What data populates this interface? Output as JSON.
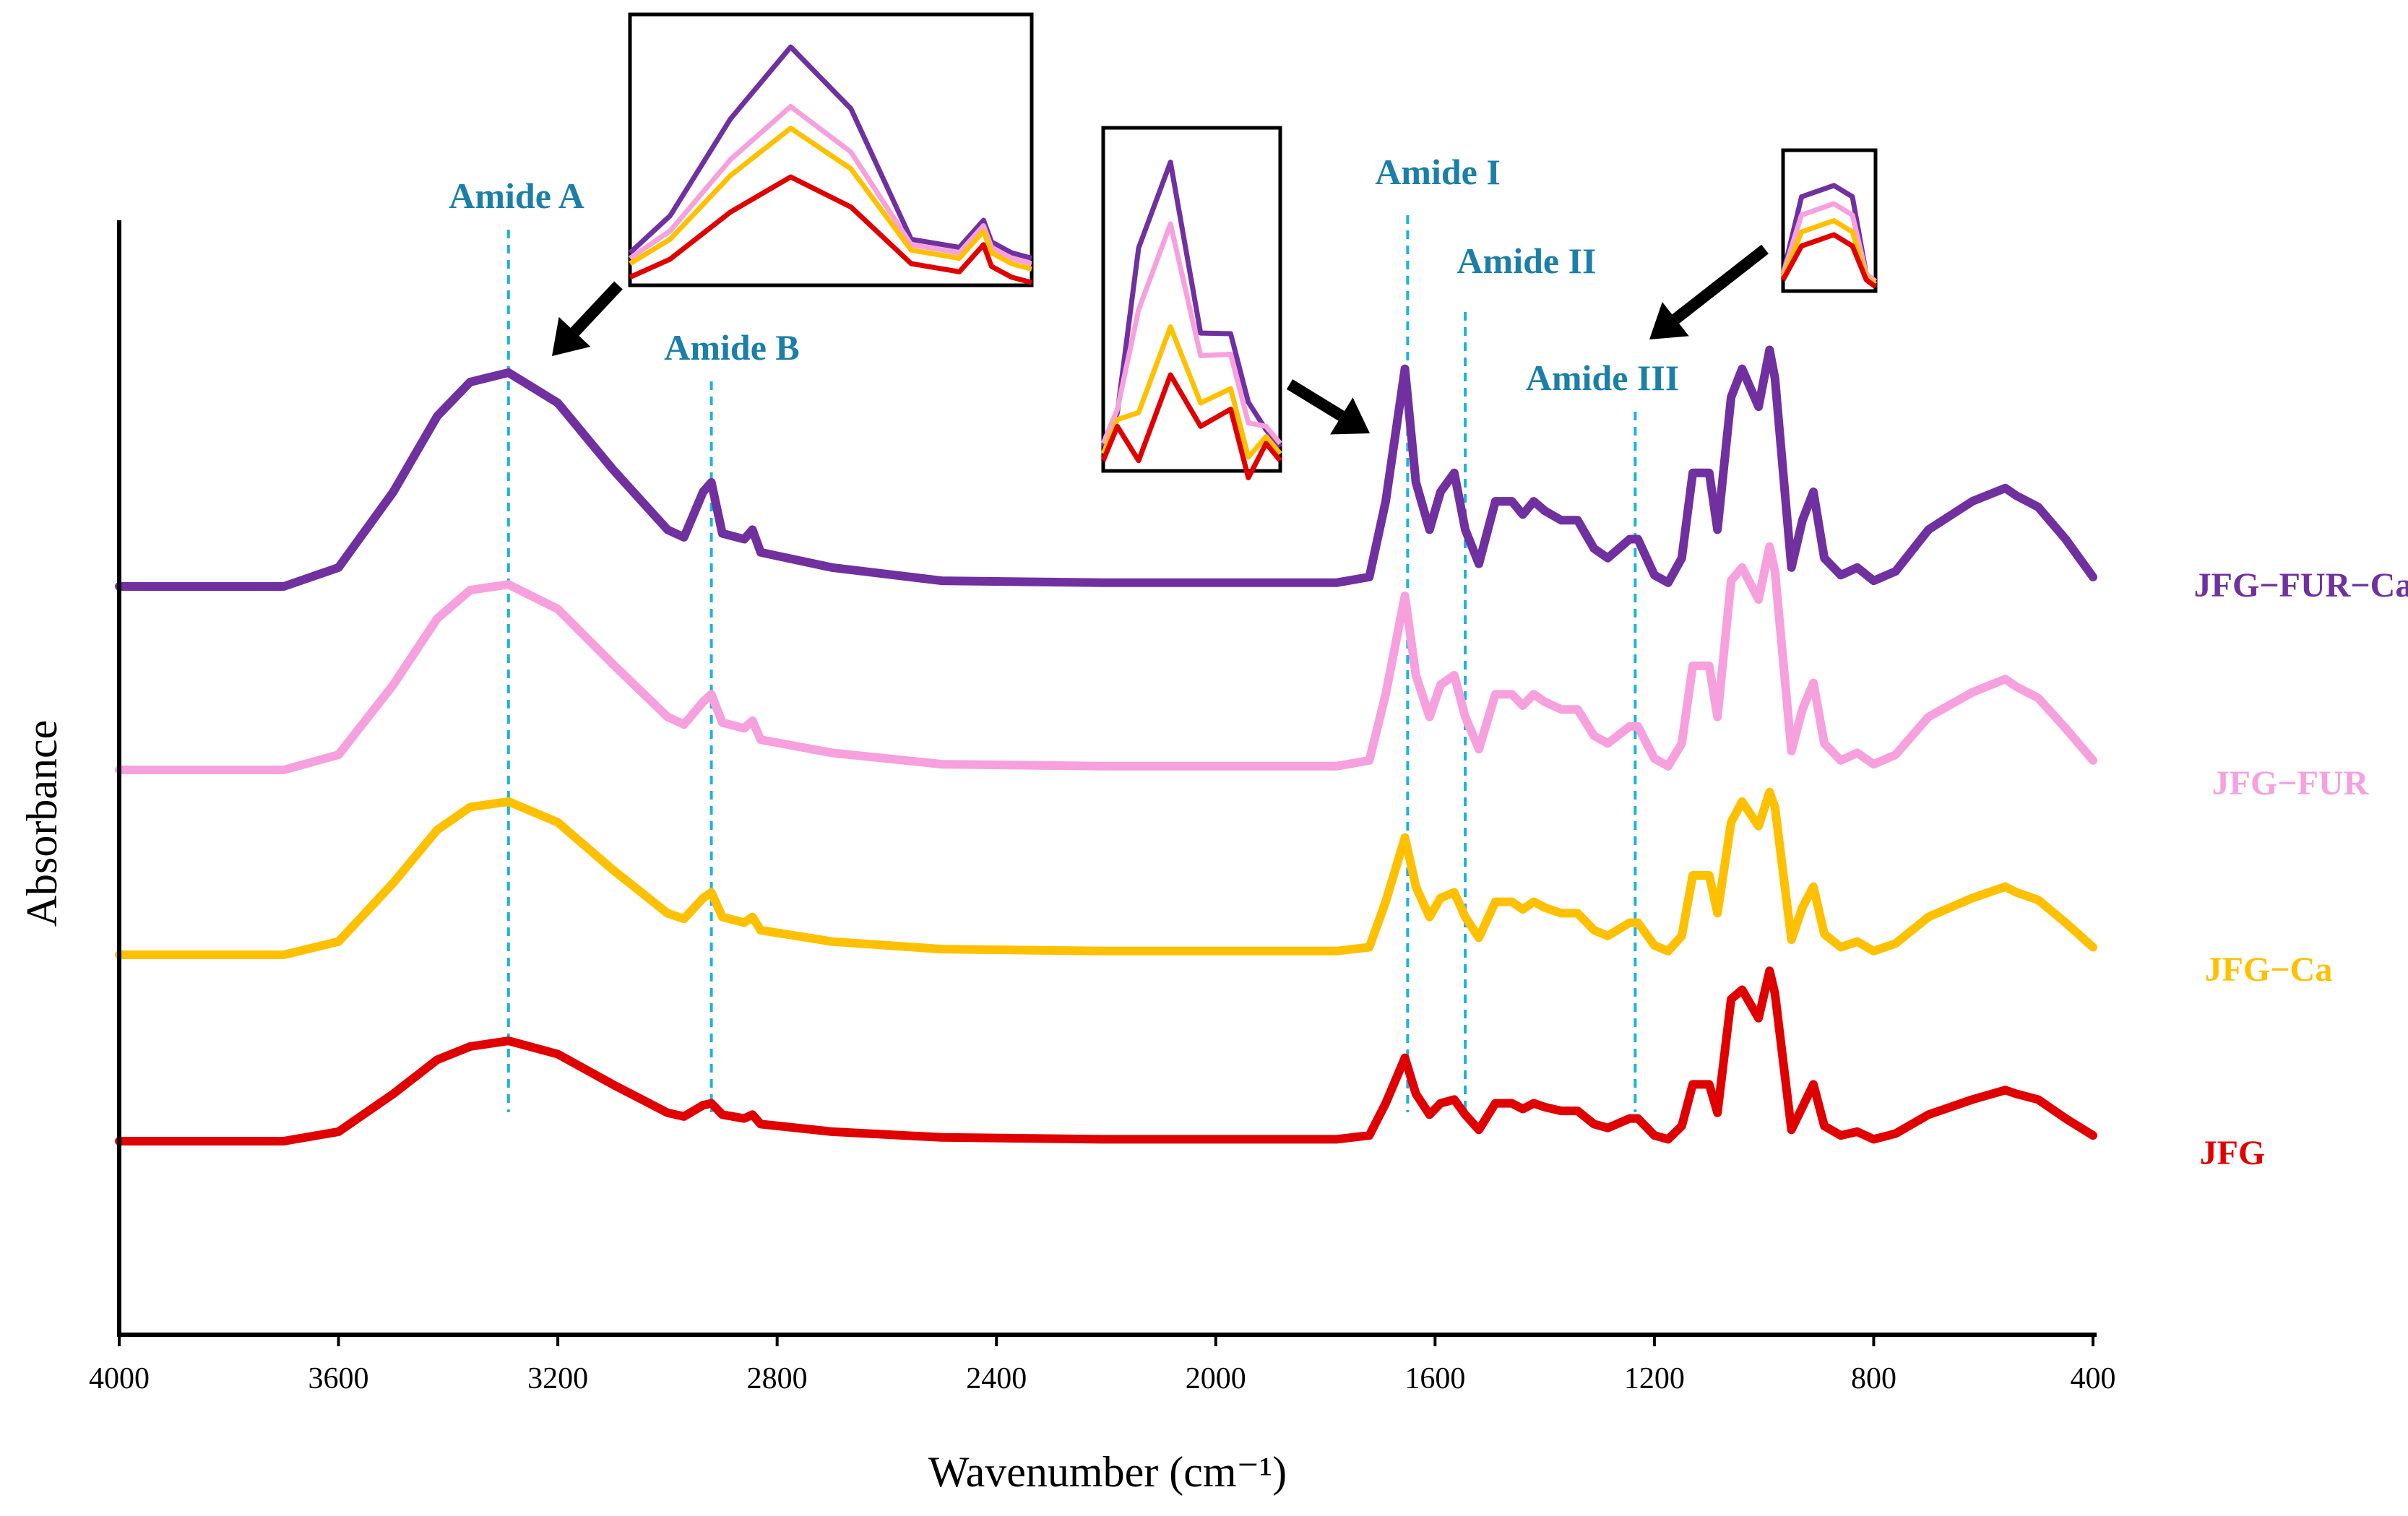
{
  "chart_data": {
    "type": "line",
    "xlabel": "Wavenumber (cm⁻¹)",
    "ylabel": "Absorbance",
    "xlim": [
      4000,
      400
    ],
    "x_reversed": true,
    "x_ticks": [
      4000,
      3600,
      3200,
      2800,
      2400,
      2000,
      1600,
      1200,
      800,
      400
    ],
    "y_ticks_shown": false,
    "grid": false,
    "legend": "right-inline-labels",
    "series": [
      {
        "name": "JFG−FUR−Ca",
        "color": "#7030a0",
        "offset": 3.0,
        "points": [
          [
            4000,
            0
          ],
          [
            3700,
            0
          ],
          [
            3600,
            0.1
          ],
          [
            3500,
            0.5
          ],
          [
            3420,
            0.9
          ],
          [
            3360,
            1.08
          ],
          [
            3290,
            1.13
          ],
          [
            3200,
            0.97
          ],
          [
            3100,
            0.62
          ],
          [
            3000,
            0.3
          ],
          [
            2970,
            0.26
          ],
          [
            2935,
            0.5
          ],
          [
            2920,
            0.55
          ],
          [
            2900,
            0.28
          ],
          [
            2860,
            0.25
          ],
          [
            2845,
            0.3
          ],
          [
            2830,
            0.18
          ],
          [
            2700,
            0.1
          ],
          [
            2500,
            0.03
          ],
          [
            2200,
            0.02
          ],
          [
            1780,
            0.02
          ],
          [
            1720,
            0.05
          ],
          [
            1690,
            0.45
          ],
          [
            1655,
            1.15
          ],
          [
            1635,
            0.55
          ],
          [
            1610,
            0.3
          ],
          [
            1590,
            0.5
          ],
          [
            1565,
            0.6
          ],
          [
            1545,
            0.3
          ],
          [
            1520,
            0.12
          ],
          [
            1490,
            0.45
          ],
          [
            1460,
            0.45
          ],
          [
            1440,
            0.38
          ],
          [
            1420,
            0.45
          ],
          [
            1400,
            0.4
          ],
          [
            1370,
            0.35
          ],
          [
            1340,
            0.35
          ],
          [
            1310,
            0.2
          ],
          [
            1285,
            0.15
          ],
          [
            1245,
            0.25
          ],
          [
            1230,
            0.25
          ],
          [
            1200,
            0.06
          ],
          [
            1175,
            0.02
          ],
          [
            1150,
            0.15
          ],
          [
            1130,
            0.6
          ],
          [
            1100,
            0.6
          ],
          [
            1085,
            0.3
          ],
          [
            1060,
            1.0
          ],
          [
            1040,
            1.15
          ],
          [
            1010,
            0.95
          ],
          [
            990,
            1.25
          ],
          [
            980,
            1.1
          ],
          [
            950,
            0.1
          ],
          [
            930,
            0.35
          ],
          [
            910,
            0.5
          ],
          [
            890,
            0.15
          ],
          [
            860,
            0.06
          ],
          [
            830,
            0.1
          ],
          [
            800,
            0.03
          ],
          [
            760,
            0.08
          ],
          [
            700,
            0.3
          ],
          [
            620,
            0.45
          ],
          [
            560,
            0.52
          ],
          [
            540,
            0.48
          ],
          [
            500,
            0.42
          ],
          [
            450,
            0.25
          ],
          [
            400,
            0.05
          ]
        ]
      },
      {
        "name": "JFG−FUR",
        "color": "#f7a0de",
        "offset": 2.0,
        "points": [
          [
            4000,
            0
          ],
          [
            3700,
            0
          ],
          [
            3600,
            0.08
          ],
          [
            3500,
            0.45
          ],
          [
            3420,
            0.8
          ],
          [
            3360,
            0.95
          ],
          [
            3290,
            0.98
          ],
          [
            3200,
            0.85
          ],
          [
            3100,
            0.56
          ],
          [
            3000,
            0.28
          ],
          [
            2970,
            0.24
          ],
          [
            2935,
            0.36
          ],
          [
            2920,
            0.4
          ],
          [
            2900,
            0.25
          ],
          [
            2860,
            0.22
          ],
          [
            2845,
            0.26
          ],
          [
            2830,
            0.16
          ],
          [
            2700,
            0.09
          ],
          [
            2500,
            0.03
          ],
          [
            2200,
            0.02
          ],
          [
            1780,
            0.02
          ],
          [
            1720,
            0.05
          ],
          [
            1690,
            0.4
          ],
          [
            1655,
            0.92
          ],
          [
            1635,
            0.5
          ],
          [
            1610,
            0.28
          ],
          [
            1590,
            0.45
          ],
          [
            1565,
            0.5
          ],
          [
            1545,
            0.28
          ],
          [
            1520,
            0.11
          ],
          [
            1490,
            0.4
          ],
          [
            1460,
            0.4
          ],
          [
            1440,
            0.34
          ],
          [
            1420,
            0.4
          ],
          [
            1400,
            0.36
          ],
          [
            1370,
            0.32
          ],
          [
            1340,
            0.32
          ],
          [
            1310,
            0.18
          ],
          [
            1285,
            0.14
          ],
          [
            1245,
            0.23
          ],
          [
            1230,
            0.23
          ],
          [
            1200,
            0.06
          ],
          [
            1175,
            0.02
          ],
          [
            1150,
            0.14
          ],
          [
            1130,
            0.55
          ],
          [
            1100,
            0.55
          ],
          [
            1085,
            0.28
          ],
          [
            1060,
            1.0
          ],
          [
            1040,
            1.07
          ],
          [
            1010,
            0.9
          ],
          [
            990,
            1.18
          ],
          [
            980,
            1.05
          ],
          [
            950,
            0.1
          ],
          [
            930,
            0.32
          ],
          [
            910,
            0.46
          ],
          [
            890,
            0.14
          ],
          [
            860,
            0.05
          ],
          [
            830,
            0.09
          ],
          [
            800,
            0.03
          ],
          [
            760,
            0.08
          ],
          [
            700,
            0.28
          ],
          [
            620,
            0.41
          ],
          [
            560,
            0.48
          ],
          [
            540,
            0.44
          ],
          [
            500,
            0.38
          ],
          [
            450,
            0.22
          ],
          [
            400,
            0.05
          ]
        ]
      },
      {
        "name": "JFG−Ca",
        "color": "#ffc000",
        "offset": 1.0,
        "points": [
          [
            4000,
            0
          ],
          [
            3700,
            0
          ],
          [
            3600,
            0.07
          ],
          [
            3500,
            0.38
          ],
          [
            3420,
            0.66
          ],
          [
            3360,
            0.78
          ],
          [
            3290,
            0.81
          ],
          [
            3200,
            0.7
          ],
          [
            3100,
            0.45
          ],
          [
            3000,
            0.22
          ],
          [
            2970,
            0.19
          ],
          [
            2935,
            0.3
          ],
          [
            2920,
            0.33
          ],
          [
            2900,
            0.2
          ],
          [
            2860,
            0.17
          ],
          [
            2845,
            0.2
          ],
          [
            2830,
            0.13
          ],
          [
            2700,
            0.07
          ],
          [
            2500,
            0.03
          ],
          [
            2200,
            0.02
          ],
          [
            1780,
            0.02
          ],
          [
            1720,
            0.04
          ],
          [
            1690,
            0.28
          ],
          [
            1655,
            0.62
          ],
          [
            1635,
            0.36
          ],
          [
            1610,
            0.2
          ],
          [
            1590,
            0.3
          ],
          [
            1565,
            0.33
          ],
          [
            1545,
            0.2
          ],
          [
            1520,
            0.09
          ],
          [
            1490,
            0.28
          ],
          [
            1460,
            0.28
          ],
          [
            1440,
            0.24
          ],
          [
            1420,
            0.28
          ],
          [
            1400,
            0.25
          ],
          [
            1370,
            0.22
          ],
          [
            1340,
            0.22
          ],
          [
            1310,
            0.13
          ],
          [
            1285,
            0.1
          ],
          [
            1245,
            0.17
          ],
          [
            1230,
            0.17
          ],
          [
            1200,
            0.05
          ],
          [
            1175,
            0.02
          ],
          [
            1150,
            0.1
          ],
          [
            1130,
            0.42
          ],
          [
            1100,
            0.42
          ],
          [
            1085,
            0.22
          ],
          [
            1060,
            0.7
          ],
          [
            1040,
            0.81
          ],
          [
            1010,
            0.68
          ],
          [
            990,
            0.86
          ],
          [
            980,
            0.78
          ],
          [
            950,
            0.08
          ],
          [
            930,
            0.25
          ],
          [
            910,
            0.36
          ],
          [
            890,
            0.11
          ],
          [
            860,
            0.04
          ],
          [
            830,
            0.07
          ],
          [
            800,
            0.02
          ],
          [
            760,
            0.06
          ],
          [
            700,
            0.2
          ],
          [
            620,
            0.3
          ],
          [
            560,
            0.36
          ],
          [
            540,
            0.33
          ],
          [
            500,
            0.29
          ],
          [
            450,
            0.17
          ],
          [
            400,
            0.04
          ]
        ]
      },
      {
        "name": "JFG",
        "color": "#e00000",
        "offset": 0.0,
        "points": [
          [
            4000,
            0
          ],
          [
            3700,
            0
          ],
          [
            3600,
            0.05
          ],
          [
            3500,
            0.25
          ],
          [
            3420,
            0.43
          ],
          [
            3360,
            0.5
          ],
          [
            3290,
            0.53
          ],
          [
            3200,
            0.46
          ],
          [
            3100,
            0.3
          ],
          [
            3000,
            0.15
          ],
          [
            2970,
            0.13
          ],
          [
            2935,
            0.19
          ],
          [
            2920,
            0.2
          ],
          [
            2900,
            0.14
          ],
          [
            2860,
            0.12
          ],
          [
            2845,
            0.14
          ],
          [
            2830,
            0.09
          ],
          [
            2700,
            0.05
          ],
          [
            2500,
            0.02
          ],
          [
            2200,
            0.01
          ],
          [
            1780,
            0.01
          ],
          [
            1720,
            0.03
          ],
          [
            1690,
            0.2
          ],
          [
            1655,
            0.44
          ],
          [
            1635,
            0.25
          ],
          [
            1610,
            0.14
          ],
          [
            1590,
            0.2
          ],
          [
            1565,
            0.22
          ],
          [
            1545,
            0.14
          ],
          [
            1520,
            0.06
          ],
          [
            1490,
            0.2
          ],
          [
            1460,
            0.2
          ],
          [
            1440,
            0.17
          ],
          [
            1420,
            0.2
          ],
          [
            1400,
            0.18
          ],
          [
            1370,
            0.16
          ],
          [
            1340,
            0.16
          ],
          [
            1310,
            0.09
          ],
          [
            1285,
            0.07
          ],
          [
            1245,
            0.12
          ],
          [
            1230,
            0.12
          ],
          [
            1200,
            0.03
          ],
          [
            1175,
            0.01
          ],
          [
            1150,
            0.08
          ],
          [
            1130,
            0.3
          ],
          [
            1100,
            0.3
          ],
          [
            1085,
            0.15
          ],
          [
            1060,
            0.75
          ],
          [
            1040,
            0.8
          ],
          [
            1010,
            0.65
          ],
          [
            990,
            0.9
          ],
          [
            980,
            0.78
          ],
          [
            950,
            0.06
          ],
          [
            930,
            0.18
          ],
          [
            910,
            0.3
          ],
          [
            890,
            0.08
          ],
          [
            860,
            0.03
          ],
          [
            830,
            0.05
          ],
          [
            800,
            0.01
          ],
          [
            760,
            0.04
          ],
          [
            700,
            0.14
          ],
          [
            620,
            0.22
          ],
          [
            560,
            0.27
          ],
          [
            540,
            0.25
          ],
          [
            500,
            0.22
          ],
          [
            450,
            0.12
          ],
          [
            400,
            0.03
          ]
        ]
      }
    ],
    "annotations": [
      {
        "label": "Amide A",
        "x": 3290
      },
      {
        "label": "Amide B",
        "x": 2920
      },
      {
        "label": "Amide I",
        "x": 1650
      },
      {
        "label": "Amide II",
        "x": 1545
      },
      {
        "label": "Amide III",
        "x": 1235
      }
    ],
    "annotation_color": "#1ab3e0",
    "annotation_text_color": "#1b7fa8",
    "insets": [
      {
        "region": "Amide A"
      },
      {
        "region": "Amide I / Amide II"
      },
      {
        "region": "Amide III"
      }
    ]
  }
}
